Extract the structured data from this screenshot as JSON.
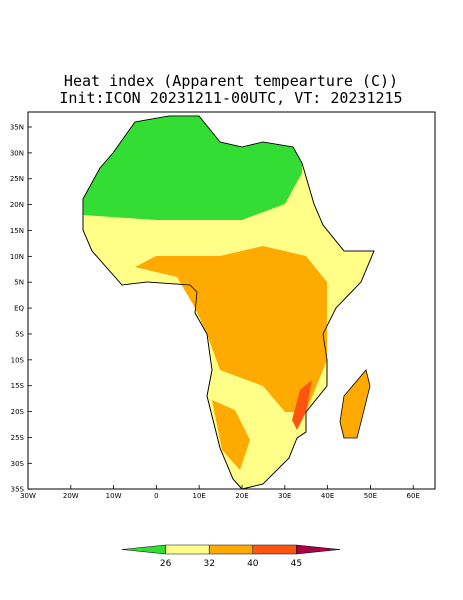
{
  "title": {
    "line1": "Heat index (Apparent tempearture (C))",
    "line2": "Init:ICON 20231211-00UTC, VT: 20231215"
  },
  "map": {
    "lat_ticks": [
      "35N",
      "30N",
      "25N",
      "20N",
      "15N",
      "10N",
      "5N",
      "EQ",
      "5S",
      "10S",
      "15S",
      "20S",
      "25S",
      "30S",
      "35S"
    ],
    "lon_ticks": [
      "30W",
      "20W",
      "10W",
      "0",
      "10E",
      "20E",
      "30E",
      "40E",
      "50E",
      "60E"
    ]
  },
  "colorbar": {
    "labels": [
      "26",
      "32",
      "40",
      "45"
    ],
    "colors": [
      "#33dd33",
      "#ffff88",
      "#ffaa00",
      "#ff5511",
      "#aa0044"
    ]
  }
}
